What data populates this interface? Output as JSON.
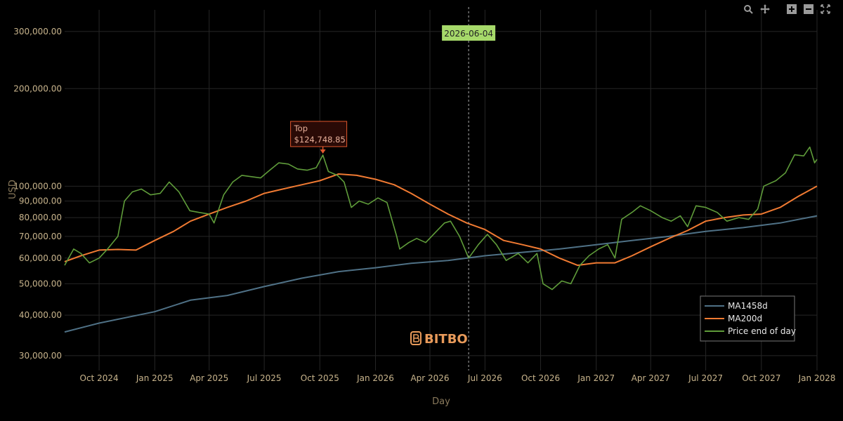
{
  "chart_data": {
    "type": "line",
    "xlabel": "Day",
    "ylabel": "USD",
    "y_scale": "log",
    "ylim": [
      27000,
      350000
    ],
    "xlim": [
      "2024-08-05",
      "2028-01-01"
    ],
    "y_ticks": [
      {
        "value": 30000,
        "label": "30,000.00"
      },
      {
        "value": 40000,
        "label": "40,000.00"
      },
      {
        "value": 50000,
        "label": "50,000.00"
      },
      {
        "value": 60000,
        "label": "60,000.00"
      },
      {
        "value": 70000,
        "label": "70,000.00"
      },
      {
        "value": 80000,
        "label": "80,000.00"
      },
      {
        "value": 90000,
        "label": "90,000.00"
      },
      {
        "value": 100000,
        "label": "100,000.00"
      },
      {
        "value": 200000,
        "label": "200,000.00"
      },
      {
        "value": 300000,
        "label": "300,000.00"
      }
    ],
    "x_ticks": [
      {
        "date": "2024-10-01",
        "label": "Oct 2024"
      },
      {
        "date": "2025-01-01",
        "label": "Jan 2025"
      },
      {
        "date": "2025-04-01",
        "label": "Apr 2025"
      },
      {
        "date": "2025-07-01",
        "label": "Jul 2025"
      },
      {
        "date": "2025-10-01",
        "label": "Oct 2025"
      },
      {
        "date": "2026-01-01",
        "label": "Jan 2026"
      },
      {
        "date": "2026-04-01",
        "label": "Apr 2026"
      },
      {
        "date": "2026-07-01",
        "label": "Jul 2026"
      },
      {
        "date": "2026-10-01",
        "label": "Oct 2026"
      },
      {
        "date": "2027-01-01",
        "label": "Jan 2027"
      },
      {
        "date": "2027-04-01",
        "label": "Apr 2027"
      },
      {
        "date": "2027-07-01",
        "label": "Jul 2027"
      },
      {
        "date": "2027-10-01",
        "label": "Oct 2027"
      },
      {
        "date": "2028-01-01",
        "label": "Jan 2028"
      }
    ],
    "grid": true,
    "legend_position": "bottom-right",
    "series": [
      {
        "name": "MA1458d",
        "color": "#4f7186",
        "points": [
          [
            "2024-08-05",
            35500
          ],
          [
            "2024-10-01",
            37800
          ],
          [
            "2025-01-01",
            41000
          ],
          [
            "2025-03-01",
            44500
          ],
          [
            "2025-05-01",
            46000
          ],
          [
            "2025-07-01",
            49000
          ],
          [
            "2025-09-01",
            52000
          ],
          [
            "2025-11-01",
            54500
          ],
          [
            "2026-01-01",
            56000
          ],
          [
            "2026-03-01",
            57800
          ],
          [
            "2026-05-01",
            59000
          ],
          [
            "2026-07-01",
            61000
          ],
          [
            "2026-09-01",
            62500
          ],
          [
            "2026-11-01",
            64000
          ],
          [
            "2027-01-01",
            66000
          ],
          [
            "2027-03-01",
            68000
          ],
          [
            "2027-05-01",
            70000
          ],
          [
            "2027-07-01",
            72500
          ],
          [
            "2027-09-01",
            74500
          ],
          [
            "2027-11-01",
            77000
          ],
          [
            "2028-01-01",
            81000
          ]
        ]
      },
      {
        "name": "MA200d",
        "color": "#f07a32",
        "points": [
          [
            "2024-08-05",
            58500
          ],
          [
            "2024-09-01",
            61000
          ],
          [
            "2024-10-01",
            63500
          ],
          [
            "2024-11-01",
            63800
          ],
          [
            "2024-12-01",
            63500
          ],
          [
            "2025-01-01",
            68000
          ],
          [
            "2025-02-01",
            72500
          ],
          [
            "2025-03-01",
            78000
          ],
          [
            "2025-04-01",
            82000
          ],
          [
            "2025-05-01",
            86000
          ],
          [
            "2025-06-01",
            90000
          ],
          [
            "2025-07-01",
            95000
          ],
          [
            "2025-08-01",
            98000
          ],
          [
            "2025-09-01",
            101000
          ],
          [
            "2025-10-01",
            104000
          ],
          [
            "2025-11-01",
            109000
          ],
          [
            "2025-12-01",
            108000
          ],
          [
            "2026-01-01",
            105000
          ],
          [
            "2026-02-01",
            101000
          ],
          [
            "2026-03-01",
            95000
          ],
          [
            "2026-04-01",
            88000
          ],
          [
            "2026-05-01",
            82000
          ],
          [
            "2026-06-01",
            77000
          ],
          [
            "2026-07-01",
            73500
          ],
          [
            "2026-08-01",
            68000
          ],
          [
            "2026-09-01",
            66000
          ],
          [
            "2026-10-01",
            64000
          ],
          [
            "2026-11-01",
            60000
          ],
          [
            "2026-12-01",
            57000
          ],
          [
            "2027-01-01",
            58000
          ],
          [
            "2027-02-01",
            58000
          ],
          [
            "2027-03-01",
            61000
          ],
          [
            "2027-04-01",
            65000
          ],
          [
            "2027-05-01",
            69000
          ],
          [
            "2027-06-01",
            73000
          ],
          [
            "2027-07-01",
            78000
          ],
          [
            "2027-08-01",
            80000
          ],
          [
            "2027-09-01",
            81500
          ],
          [
            "2027-10-01",
            82000
          ],
          [
            "2027-11-01",
            86000
          ],
          [
            "2027-12-01",
            93000
          ],
          [
            "2028-01-01",
            100000
          ]
        ]
      },
      {
        "name": "Price end of day",
        "color": "#5f9c3a",
        "points": [
          [
            "2024-08-05",
            57000
          ],
          [
            "2024-08-20",
            64000
          ],
          [
            "2024-09-01",
            62000
          ],
          [
            "2024-09-15",
            58000
          ],
          [
            "2024-10-01",
            60000
          ],
          [
            "2024-10-15",
            64000
          ],
          [
            "2024-11-01",
            70000
          ],
          [
            "2024-11-12",
            90000
          ],
          [
            "2024-11-25",
            96000
          ],
          [
            "2024-12-10",
            98000
          ],
          [
            "2024-12-25",
            94000
          ],
          [
            "2025-01-10",
            95000
          ],
          [
            "2025-01-25",
            103000
          ],
          [
            "2025-02-10",
            96000
          ],
          [
            "2025-02-28",
            84000
          ],
          [
            "2025-03-15",
            83000
          ],
          [
            "2025-04-01",
            82000
          ],
          [
            "2025-04-09",
            77000
          ],
          [
            "2025-04-25",
            94000
          ],
          [
            "2025-05-10",
            103000
          ],
          [
            "2025-05-25",
            108000
          ],
          [
            "2025-06-10",
            107000
          ],
          [
            "2025-06-25",
            106000
          ],
          [
            "2025-07-10",
            112000
          ],
          [
            "2025-07-25",
            118000
          ],
          [
            "2025-08-10",
            117000
          ],
          [
            "2025-08-25",
            113000
          ],
          [
            "2025-09-10",
            112000
          ],
          [
            "2025-09-25",
            114000
          ],
          [
            "2025-10-06",
            124749
          ],
          [
            "2025-10-15",
            111000
          ],
          [
            "2025-10-30",
            108000
          ],
          [
            "2025-11-10",
            103000
          ],
          [
            "2025-11-22",
            86000
          ],
          [
            "2025-12-05",
            90000
          ],
          [
            "2025-12-20",
            88000
          ],
          [
            "2026-01-05",
            92000
          ],
          [
            "2026-01-20",
            89000
          ],
          [
            "2026-02-05",
            70000
          ],
          [
            "2026-02-10",
            64000
          ],
          [
            "2026-02-25",
            67000
          ],
          [
            "2026-03-10",
            69000
          ],
          [
            "2026-03-25",
            67000
          ],
          [
            "2026-04-10",
            72000
          ],
          [
            "2026-04-25",
            77000
          ],
          [
            "2026-05-05",
            78000
          ],
          [
            "2026-05-20",
            70000
          ],
          [
            "2026-06-04",
            60000
          ],
          [
            "2026-06-20",
            66000
          ],
          [
            "2026-07-05",
            71000
          ],
          [
            "2026-07-20",
            66000
          ],
          [
            "2026-08-05",
            59000
          ],
          [
            "2026-08-25",
            62000
          ],
          [
            "2026-09-10",
            58000
          ],
          [
            "2026-09-25",
            62000
          ],
          [
            "2026-10-05",
            50000
          ],
          [
            "2026-10-20",
            48000
          ],
          [
            "2026-11-05",
            51000
          ],
          [
            "2026-11-20",
            50000
          ],
          [
            "2026-12-05",
            57000
          ],
          [
            "2026-12-20",
            61000
          ],
          [
            "2027-01-05",
            64000
          ],
          [
            "2027-01-20",
            66000
          ],
          [
            "2027-02-01",
            60000
          ],
          [
            "2027-02-12",
            79000
          ],
          [
            "2027-03-01",
            83000
          ],
          [
            "2027-03-15",
            87000
          ],
          [
            "2027-04-01",
            84000
          ],
          [
            "2027-04-20",
            80000
          ],
          [
            "2027-05-05",
            78000
          ],
          [
            "2027-05-20",
            81000
          ],
          [
            "2027-06-01",
            75000
          ],
          [
            "2027-06-15",
            87000
          ],
          [
            "2027-07-01",
            86000
          ],
          [
            "2027-07-20",
            83000
          ],
          [
            "2027-08-05",
            78000
          ],
          [
            "2027-08-25",
            80000
          ],
          [
            "2027-09-10",
            79000
          ],
          [
            "2027-09-25",
            85000
          ],
          [
            "2027-10-05",
            100000
          ],
          [
            "2027-10-25",
            104000
          ],
          [
            "2027-11-10",
            110000
          ],
          [
            "2027-11-25",
            125000
          ],
          [
            "2027-12-10",
            124000
          ],
          [
            "2027-12-20",
            132000
          ],
          [
            "2027-12-28",
            118000
          ],
          [
            "2028-01-01",
            121000
          ]
        ]
      }
    ],
    "annotations": {
      "top": {
        "date": "2025-10-06",
        "value": 124748.85,
        "line1": "Top",
        "line2": "$124,748.85"
      },
      "cursor": {
        "date": "2026-06-04",
        "label": "2026-06-04"
      }
    }
  },
  "branding": {
    "logo_text": "BITBO",
    "logo_color": "#e89a5a"
  },
  "modebar": [
    {
      "name": "zoom-icon",
      "glyph": "🔍"
    },
    {
      "name": "pan-icon",
      "glyph": "✥"
    },
    {
      "name": "zoom-in-icon",
      "glyph": "+"
    },
    {
      "name": "zoom-out-icon",
      "glyph": "−"
    },
    {
      "name": "autoscale-icon",
      "glyph": "⤧"
    }
  ],
  "colors": {
    "background": "#000000",
    "grid": "#262626",
    "tick_text": "#c8b48c",
    "annotation_border": "#e0572e",
    "cursor_bg": "#a6d96a"
  }
}
